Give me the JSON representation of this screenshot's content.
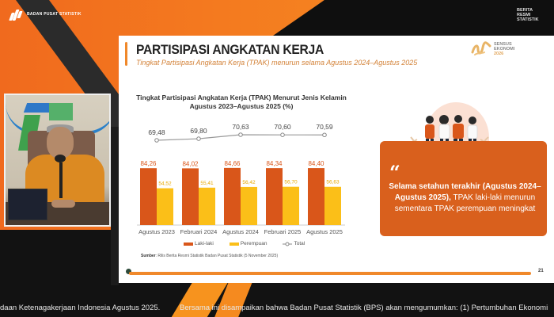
{
  "header": {
    "org_logo_text": "BADAN PUSAT STATISTIK",
    "brs_logo": [
      "BERITA",
      "RESMI",
      "STATISTIK"
    ]
  },
  "slide": {
    "title": "PARTISIPASI ANGKATAN KERJA",
    "subtitle": "Tingkat Partisipasi Angkatan Kerja (TPAK) menurun selama Agustus 2024–Agustus 2025",
    "sensus_logo": [
      "SENSUS",
      "EKONOMI",
      "2026"
    ],
    "chart_title_line1": "Tingkat Partisipasi Angkatan Kerja (TPAK) Menurut Jenis Kelamin",
    "chart_title_line2": "Agustus 2023–Agustus 2025 (%)",
    "legend": {
      "male": "Laki-laki",
      "female": "Perempuan",
      "total": "Total"
    },
    "source_label": "Sumber",
    "source_text": ": Rilis Berita Resmi Statistik Badan Pusat Statistik (5 November 2025)",
    "quote": {
      "bold": "Selama setahun terakhir (Agustus 2024–Agustus 2025),",
      "normal": " TPAK laki-laki menurun sementara TPAK perempuan meningkat"
    },
    "page_number": "21",
    "colors": {
      "male": "#d9561a",
      "female": "#fbbf18",
      "total_line": "#9a9a9a",
      "accent": "#f0882a",
      "quote_bg": "#d9601d"
    }
  },
  "chart_data": {
    "type": "bar",
    "title": "Tingkat Partisipasi Angkatan Kerja (TPAK) Menurut Jenis Kelamin Agustus 2023–Agustus 2025 (%)",
    "categories": [
      "Agustus 2023",
      "Februari 2024",
      "Agustus 2024",
      "Februari 2025",
      "Agustus 2025"
    ],
    "series": [
      {
        "name": "Laki-laki",
        "type": "bar",
        "values": [
          84.26,
          84.02,
          84.66,
          84.34,
          84.4
        ],
        "labels": [
          "84,26",
          "84,02",
          "84,66",
          "84,34",
          "84,40"
        ]
      },
      {
        "name": "Perempuan",
        "type": "bar",
        "values": [
          54.52,
          55.41,
          56.42,
          56.7,
          56.63
        ],
        "labels": [
          "54,52",
          "55,41",
          "56,42",
          "56,70",
          "56,63"
        ]
      },
      {
        "name": "Total",
        "type": "line",
        "values": [
          69.48,
          69.8,
          70.63,
          70.6,
          70.59
        ],
        "labels": [
          "69,48",
          "69,80",
          "70,63",
          "70,60",
          "70,59"
        ]
      }
    ],
    "xlabel": "",
    "ylabel": "%",
    "legend_position": "bottom",
    "grid": false
  },
  "ticker": {
    "segment1": "daan Ketenagakerjaan Indonesia Agustus 2025.",
    "segment2": "Bersama ini disampaikan bahwa Badan Pusat Statistik (BPS) akan mengumumkan: (1) Pertumbuhan Ekonomi"
  }
}
